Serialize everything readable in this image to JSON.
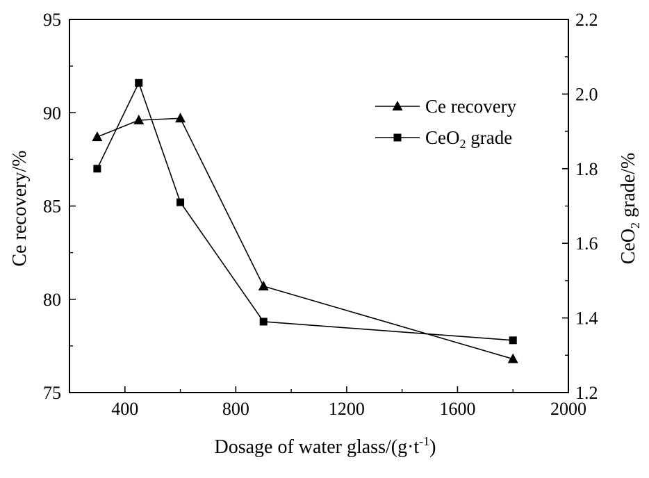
{
  "chart_data": {
    "type": "line",
    "xlabel": "Dosage of water glass/(g·t",
    "xlabel_sup": "-1",
    "xlabel_end": ")",
    "ylabel_left": "Ce recovery/%",
    "ylabel_right_pre": "CeO",
    "ylabel_right_sub": "2",
    "ylabel_right_post": " grade/%",
    "xlim": [
      200,
      2000
    ],
    "ylim_left": [
      75,
      95
    ],
    "ylim_right": [
      1.2,
      2.2
    ],
    "x_ticks": [
      "400",
      "800",
      "1200",
      "1600",
      "2000"
    ],
    "y_left_ticks": [
      "75",
      "80",
      "85",
      "90",
      "95"
    ],
    "y_right_ticks": [
      "1.2",
      "1.4",
      "1.6",
      "1.8",
      "2.0",
      "2.2"
    ],
    "grid": false,
    "legend_position": "top-right",
    "series": [
      {
        "name": "Ce recovery",
        "axis": "left",
        "marker": "triangle",
        "x": [
          300,
          450,
          600,
          900,
          1800
        ],
        "y": [
          88.7,
          89.6,
          89.7,
          80.7,
          76.8
        ]
      },
      {
        "name_pre": "CeO",
        "name_sub": "2",
        "name_post": " grade",
        "axis": "right",
        "marker": "square",
        "x": [
          300,
          450,
          600,
          900,
          1800
        ],
        "y": [
          1.8,
          2.03,
          1.71,
          1.39,
          1.34
        ]
      }
    ]
  }
}
